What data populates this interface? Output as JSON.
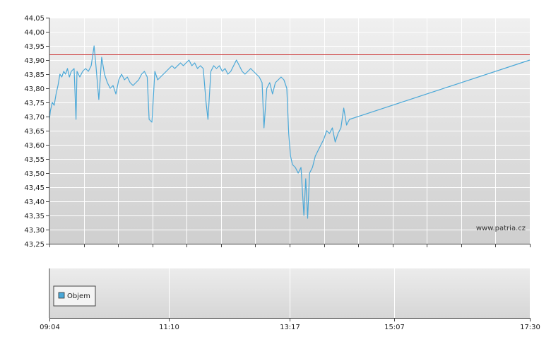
{
  "chart_data": [
    {
      "type": "line",
      "title": "",
      "xlabel": "",
      "ylabel": "",
      "ylim": [
        43.25,
        44.05
      ],
      "ytick_labels": [
        "44,05",
        "44,00",
        "43,95",
        "43,90",
        "43,85",
        "43,80",
        "43,75",
        "43,70",
        "43,65",
        "43,60",
        "43,55",
        "43,50",
        "43,45",
        "43,40",
        "43,35",
        "43,30",
        "43,25"
      ],
      "ytick_values": [
        44.05,
        44.0,
        43.95,
        43.9,
        43.85,
        43.8,
        43.75,
        43.7,
        43.65,
        43.6,
        43.55,
        43.5,
        43.45,
        43.4,
        43.35,
        43.3,
        43.25
      ],
      "x_range": [
        "09:04",
        "17:30"
      ],
      "xtick_labels": [
        "09:04",
        "11:10",
        "13:17",
        "15:07",
        "17:30"
      ],
      "grid": true,
      "reference_line": {
        "value": 43.92,
        "color": "#cc3333"
      },
      "watermark": "www.patria.cz",
      "series": [
        {
          "color": "#4aa8d8",
          "points": [
            [
              "09:04",
              43.69
            ],
            [
              "09:05",
              43.72
            ],
            [
              "09:07",
              43.75
            ],
            [
              "09:09",
              43.74
            ],
            [
              "09:11",
              43.78
            ],
            [
              "09:13",
              43.81
            ],
            [
              "09:15",
              43.85
            ],
            [
              "09:17",
              43.84
            ],
            [
              "09:19",
              43.86
            ],
            [
              "09:21",
              43.85
            ],
            [
              "09:23",
              43.87
            ],
            [
              "09:25",
              43.84
            ],
            [
              "09:27",
              43.86
            ],
            [
              "09:30",
              43.87
            ],
            [
              "09:32",
              43.69
            ],
            [
              "09:33",
              43.86
            ],
            [
              "09:36",
              43.84
            ],
            [
              "09:39",
              43.86
            ],
            [
              "09:42",
              43.87
            ],
            [
              "09:45",
              43.86
            ],
            [
              "09:48",
              43.88
            ],
            [
              "09:51",
              43.95
            ],
            [
              "09:53",
              43.88
            ],
            [
              "09:56",
              43.76
            ],
            [
              "09:59",
              43.91
            ],
            [
              "10:02",
              43.85
            ],
            [
              "10:05",
              43.82
            ],
            [
              "10:08",
              43.8
            ],
            [
              "10:11",
              43.81
            ],
            [
              "10:14",
              43.78
            ],
            [
              "10:17",
              43.83
            ],
            [
              "10:20",
              43.85
            ],
            [
              "10:23",
              43.83
            ],
            [
              "10:26",
              43.84
            ],
            [
              "10:29",
              43.82
            ],
            [
              "10:32",
              43.81
            ],
            [
              "10:35",
              43.82
            ],
            [
              "10:38",
              43.83
            ],
            [
              "10:41",
              43.85
            ],
            [
              "10:44",
              43.86
            ],
            [
              "10:47",
              43.84
            ],
            [
              "10:49",
              43.69
            ],
            [
              "10:52",
              43.68
            ],
            [
              "10:55",
              43.86
            ],
            [
              "10:58",
              43.83
            ],
            [
              "11:01",
              43.84
            ],
            [
              "11:04",
              43.85
            ],
            [
              "11:07",
              43.86
            ],
            [
              "11:10",
              43.87
            ],
            [
              "11:13",
              43.88
            ],
            [
              "11:16",
              43.87
            ],
            [
              "11:19",
              43.88
            ],
            [
              "11:22",
              43.89
            ],
            [
              "11:25",
              43.88
            ],
            [
              "11:28",
              43.89
            ],
            [
              "11:31",
              43.9
            ],
            [
              "11:34",
              43.88
            ],
            [
              "11:37",
              43.89
            ],
            [
              "11:40",
              43.87
            ],
            [
              "11:43",
              43.88
            ],
            [
              "11:46",
              43.87
            ],
            [
              "11:49",
              43.75
            ],
            [
              "11:51",
              43.69
            ],
            [
              "11:54",
              43.86
            ],
            [
              "11:57",
              43.88
            ],
            [
              "12:00",
              43.87
            ],
            [
              "12:03",
              43.88
            ],
            [
              "12:06",
              43.86
            ],
            [
              "12:09",
              43.87
            ],
            [
              "12:12",
              43.85
            ],
            [
              "12:15",
              43.86
            ],
            [
              "12:18",
              43.88
            ],
            [
              "12:21",
              43.9
            ],
            [
              "12:24",
              43.88
            ],
            [
              "12:27",
              43.86
            ],
            [
              "12:30",
              43.85
            ],
            [
              "12:33",
              43.86
            ],
            [
              "12:36",
              43.87
            ],
            [
              "12:39",
              43.86
            ],
            [
              "12:42",
              43.85
            ],
            [
              "12:45",
              43.84
            ],
            [
              "12:48",
              43.82
            ],
            [
              "12:50",
              43.66
            ],
            [
              "12:53",
              43.8
            ],
            [
              "12:56",
              43.82
            ],
            [
              "12:59",
              43.78
            ],
            [
              "13:02",
              43.82
            ],
            [
              "13:05",
              43.83
            ],
            [
              "13:08",
              43.84
            ],
            [
              "13:11",
              43.83
            ],
            [
              "13:14",
              43.8
            ],
            [
              "13:16",
              43.64
            ],
            [
              "13:18",
              43.56
            ],
            [
              "13:20",
              43.53
            ],
            [
              "13:23",
              43.52
            ],
            [
              "13:26",
              43.5
            ],
            [
              "13:29",
              43.52
            ],
            [
              "13:32",
              43.35
            ],
            [
              "13:34",
              43.48
            ],
            [
              "13:36",
              43.34
            ],
            [
              "13:38",
              43.5
            ],
            [
              "13:41",
              43.52
            ],
            [
              "13:44",
              43.56
            ],
            [
              "13:47",
              43.58
            ],
            [
              "13:50",
              43.6
            ],
            [
              "13:53",
              43.62
            ],
            [
              "13:56",
              43.65
            ],
            [
              "13:59",
              43.64
            ],
            [
              "14:02",
              43.66
            ],
            [
              "14:05",
              43.61
            ],
            [
              "14:08",
              43.64
            ],
            [
              "14:11",
              43.66
            ],
            [
              "14:14",
              43.73
            ],
            [
              "14:17",
              43.67
            ],
            [
              "14:20",
              43.69
            ],
            [
              "17:30",
              43.9
            ]
          ]
        }
      ]
    },
    {
      "type": "bar",
      "title": "",
      "x_range": [
        "09:04",
        "17:30"
      ],
      "legend": [
        "Objem"
      ],
      "legend_position": "left",
      "series": [
        {
          "name": "Objem",
          "color": "#4aa8d8",
          "values": []
        }
      ]
    }
  ]
}
